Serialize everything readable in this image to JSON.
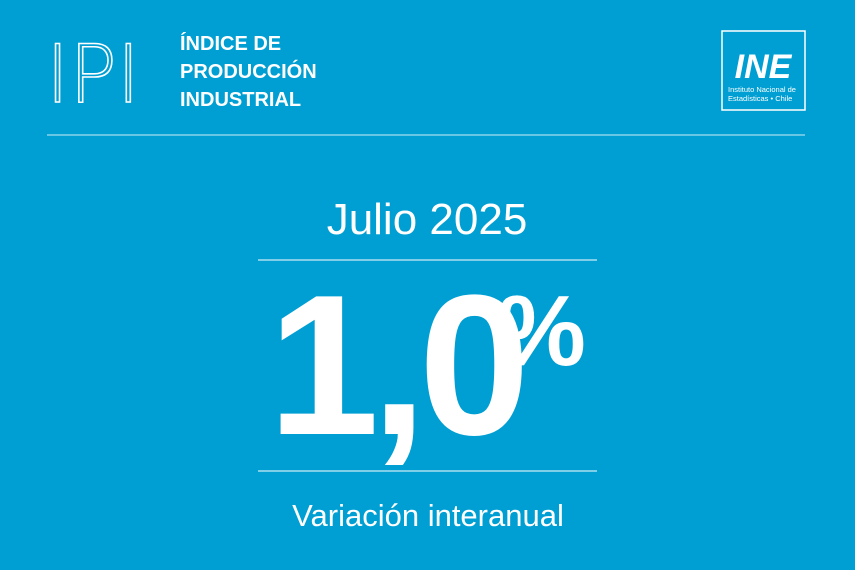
{
  "header": {
    "logo": "IPI",
    "title_lines": [
      "ÍNDICE DE",
      "PRODUCCIÓN",
      "INDUSTRIAL"
    ]
  },
  "institution": {
    "logo": "INE",
    "name_lines": [
      "Instituto Nacional de",
      "Estadísticas • Chile"
    ]
  },
  "period": "Julio 2025",
  "main_value": {
    "number": "1,0",
    "unit": "%"
  },
  "caption": "Variación interanual"
}
